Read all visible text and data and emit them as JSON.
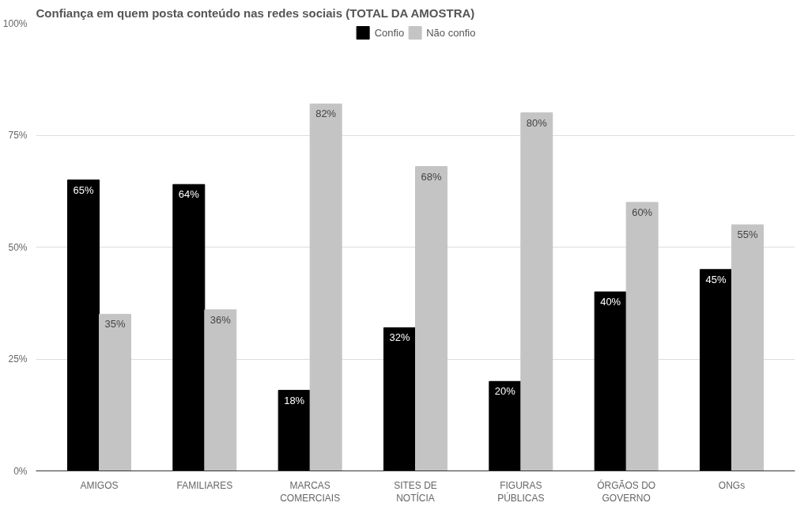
{
  "chart_data": {
    "type": "bar",
    "title": "Confiança em quem posta conteúdo nas redes sociais (TOTAL DA AMOSTRA)",
    "categories": [
      "AMIGOS",
      "FAMILIARES",
      "MARCAS COMERCIAIS",
      "SITES DE NOTÍCIA",
      "FIGURAS PÚBLICAS",
      "ÓRGÃOS DO GOVERNO",
      "ONGs"
    ],
    "series": [
      {
        "name": "Confio",
        "color": "#000000",
        "values": [
          65,
          64,
          18,
          32,
          20,
          40,
          45
        ],
        "value_labels": [
          "65%",
          "64%",
          "18%",
          "32%",
          "20%",
          "40%",
          "45%"
        ]
      },
      {
        "name": "Não confio",
        "color": "#c4c4c4",
        "values": [
          35,
          36,
          82,
          68,
          80,
          60,
          55
        ],
        "value_labels": [
          "35%",
          "36%",
          "82%",
          "68%",
          "80%",
          "60%",
          "55%"
        ]
      }
    ],
    "ylim": [
      0,
      100
    ],
    "yticks": [
      {
        "value": 0,
        "label": "0%"
      },
      {
        "value": 25,
        "label": "25%"
      },
      {
        "value": 50,
        "label": "50%"
      },
      {
        "value": 75,
        "label": "75%"
      },
      {
        "value": 100,
        "label": "100%"
      }
    ],
    "grid": "y",
    "legend": "top"
  }
}
